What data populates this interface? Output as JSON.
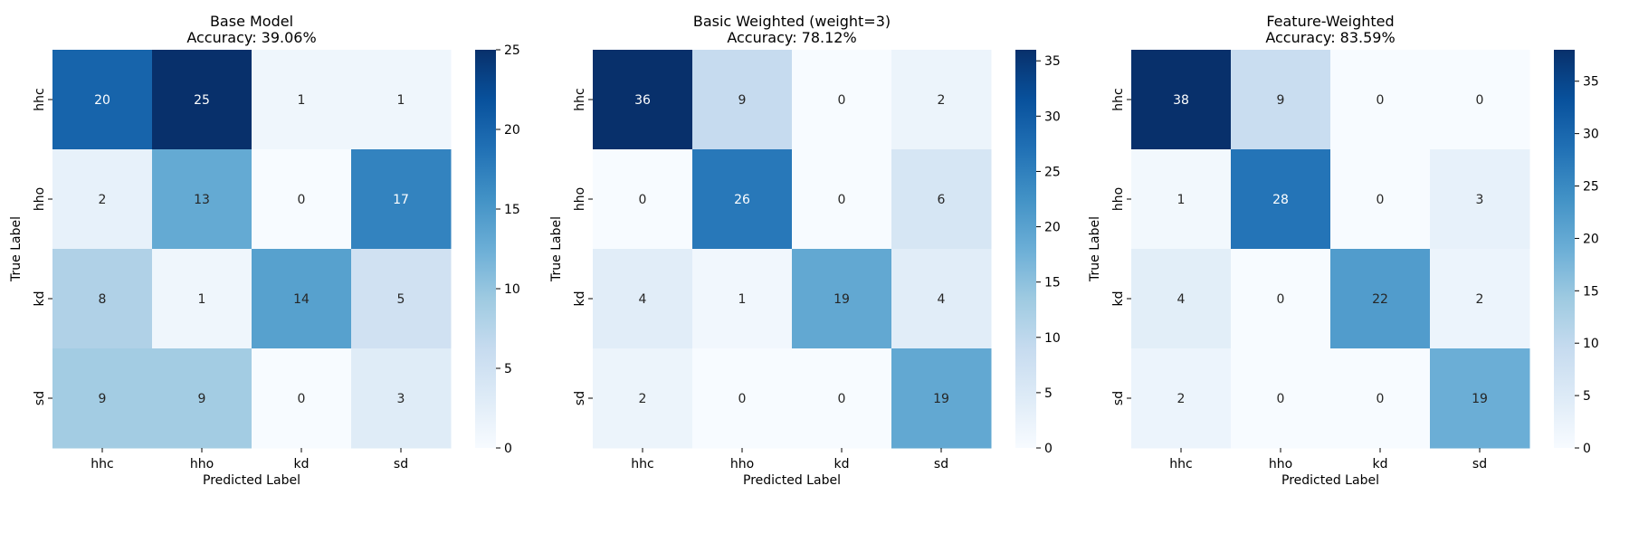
{
  "chart_data": [
    {
      "type": "heatmap",
      "title": "Base Model",
      "subtitle": "Accuracy: 39.06%",
      "xlabel": "Predicted Label",
      "ylabel": "True Label",
      "x_categories": [
        "hhc",
        "hho",
        "kd",
        "sd"
      ],
      "y_categories": [
        "hhc",
        "hho",
        "kd",
        "sd"
      ],
      "values": [
        [
          20,
          25,
          1,
          1
        ],
        [
          2,
          13,
          0,
          17
        ],
        [
          8,
          1,
          14,
          5
        ],
        [
          9,
          9,
          0,
          3
        ]
      ],
      "colorbar": {
        "range": [
          0,
          25
        ],
        "ticks": [
          0,
          5,
          10,
          15,
          20,
          25
        ]
      },
      "colormap": "Blues"
    },
    {
      "type": "heatmap",
      "title": "Basic Weighted (weight=3)",
      "subtitle": "Accuracy: 78.12%",
      "xlabel": "Predicted Label",
      "ylabel": "True Label",
      "x_categories": [
        "hhc",
        "hho",
        "kd",
        "sd"
      ],
      "y_categories": [
        "hhc",
        "hho",
        "kd",
        "sd"
      ],
      "values": [
        [
          36,
          9,
          0,
          2
        ],
        [
          0,
          26,
          0,
          6
        ],
        [
          4,
          1,
          19,
          4
        ],
        [
          2,
          0,
          0,
          19
        ]
      ],
      "colorbar": {
        "range": [
          0,
          36
        ],
        "ticks": [
          0,
          5,
          10,
          15,
          20,
          25,
          30,
          35
        ]
      },
      "colormap": "Blues"
    },
    {
      "type": "heatmap",
      "title": "Feature-Weighted",
      "subtitle": "Accuracy: 83.59%",
      "xlabel": "Predicted Label",
      "ylabel": "True Label",
      "x_categories": [
        "hhc",
        "hho",
        "kd",
        "sd"
      ],
      "y_categories": [
        "hhc",
        "hho",
        "kd",
        "sd"
      ],
      "values": [
        [
          38,
          9,
          0,
          0
        ],
        [
          1,
          28,
          0,
          3
        ],
        [
          4,
          0,
          22,
          2
        ],
        [
          2,
          0,
          0,
          19
        ]
      ],
      "colorbar": {
        "range": [
          0,
          38
        ],
        "ticks": [
          0,
          5,
          10,
          15,
          20,
          25,
          30,
          35
        ]
      },
      "colormap": "Blues"
    }
  ]
}
